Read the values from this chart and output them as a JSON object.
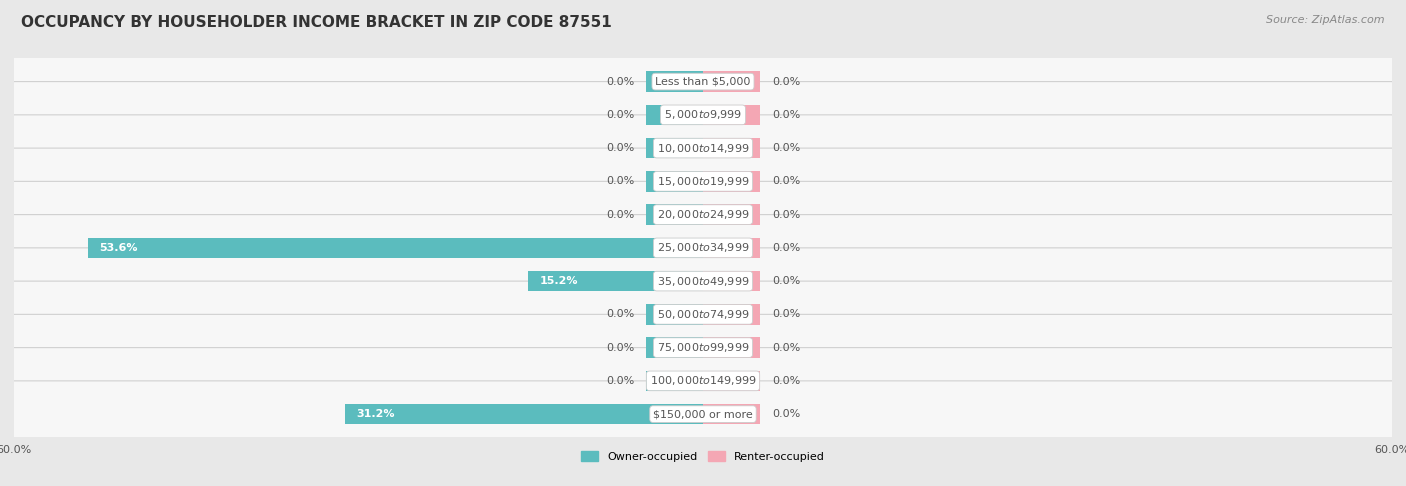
{
  "title": "OCCUPANCY BY HOUSEHOLDER INCOME BRACKET IN ZIP CODE 87551",
  "source": "Source: ZipAtlas.com",
  "categories": [
    "Less than $5,000",
    "$5,000 to $9,999",
    "$10,000 to $14,999",
    "$15,000 to $19,999",
    "$20,000 to $24,999",
    "$25,000 to $34,999",
    "$35,000 to $49,999",
    "$50,000 to $74,999",
    "$75,000 to $99,999",
    "$100,000 to $149,999",
    "$150,000 or more"
  ],
  "owner_values": [
    0.0,
    0.0,
    0.0,
    0.0,
    0.0,
    53.6,
    15.2,
    0.0,
    0.0,
    0.0,
    31.2
  ],
  "renter_values": [
    0.0,
    0.0,
    0.0,
    0.0,
    0.0,
    0.0,
    0.0,
    0.0,
    0.0,
    0.0,
    0.0
  ],
  "owner_color": "#5BBCBE",
  "renter_color": "#F4A7B4",
  "background_color": "#e8e8e8",
  "bar_background_color": "#f7f7f7",
  "row_edge_color": "#d0d0d0",
  "x_max": 60.0,
  "min_stub": 5.0,
  "title_fontsize": 11,
  "source_fontsize": 8,
  "label_fontsize": 8,
  "category_fontsize": 8,
  "legend_fontsize": 8,
  "axis_label_fontsize": 8,
  "bar_height": 0.62,
  "title_color": "#333333",
  "source_color": "#888888",
  "value_label_color": "#555555",
  "category_text_color": "#555555"
}
